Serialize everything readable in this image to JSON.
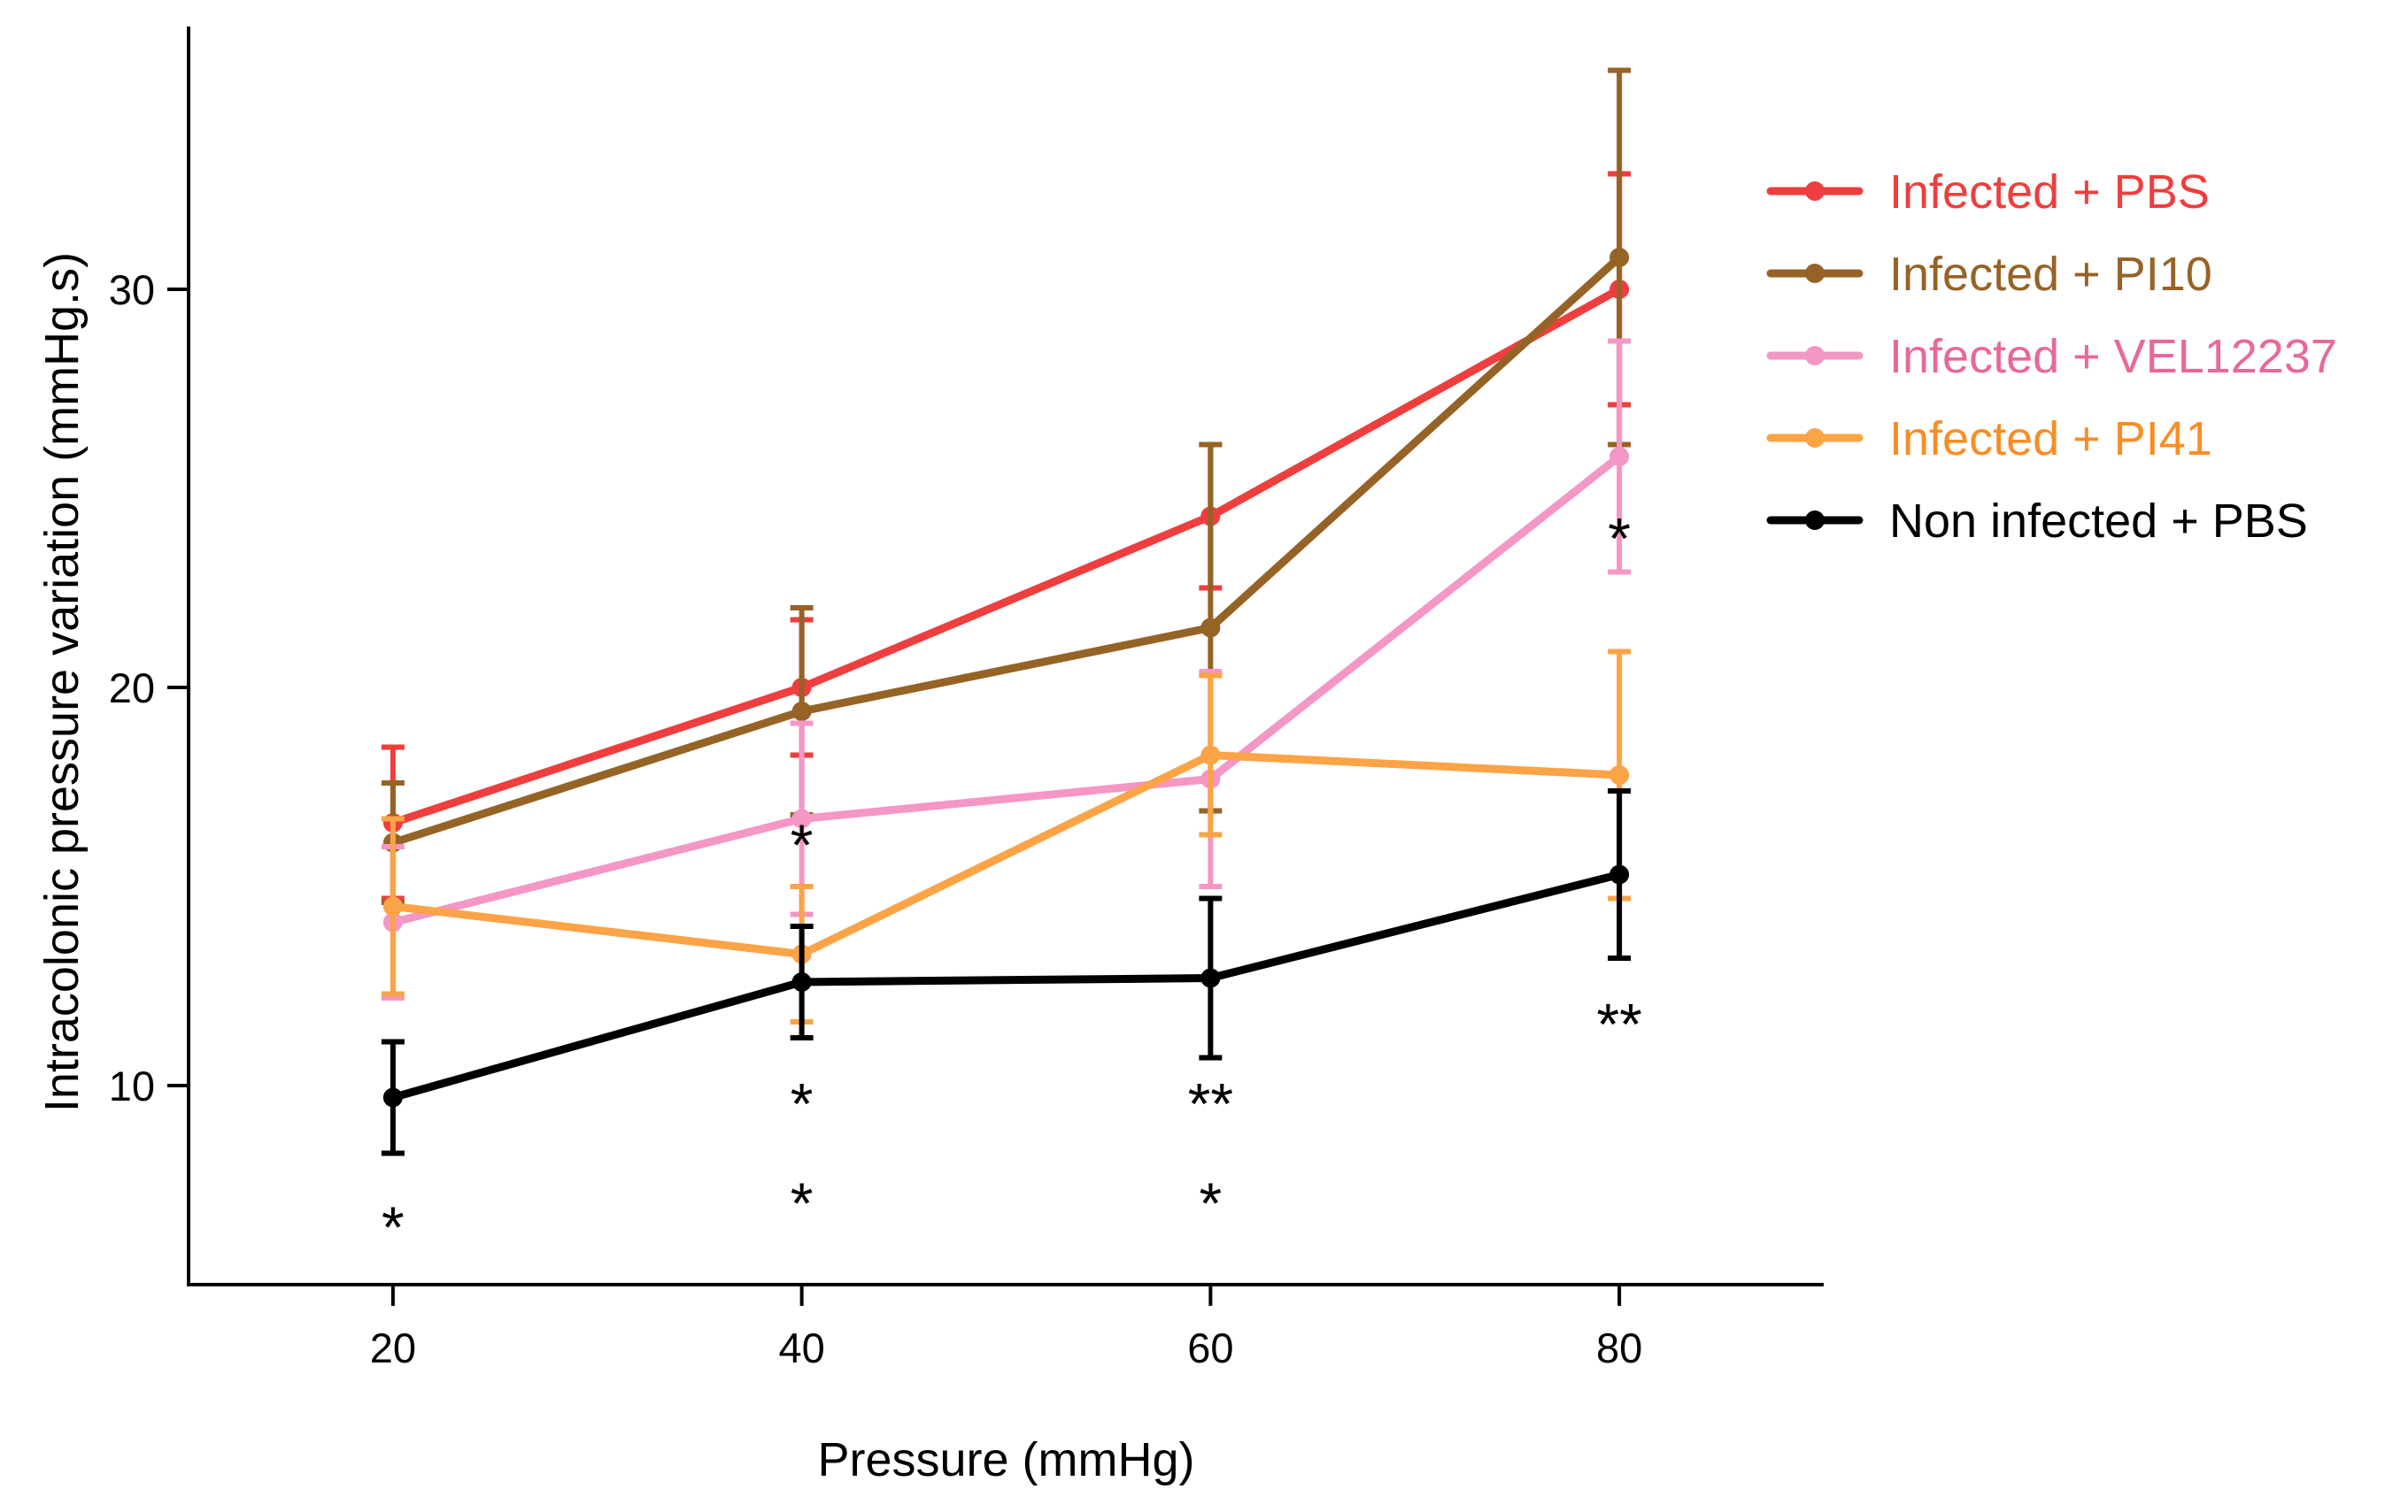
{
  "chart_data": {
    "type": "line",
    "title": "",
    "xlabel": "Pressure (mmHg)",
    "ylabel": "Intracolonic pressure variation (mmHg.s)",
    "x": [
      20,
      40,
      60,
      80
    ],
    "x_tick_labels": [
      "20",
      "40",
      "60",
      "80"
    ],
    "y_tick_labels": [
      "10",
      "20",
      "30"
    ],
    "y_ticks": [
      10,
      20,
      30
    ],
    "xlim": [
      10,
      90
    ],
    "ylim": [
      5,
      36.6
    ],
    "grid": false,
    "legend_position": "top-right",
    "series": [
      {
        "name": "Infected + PBS",
        "color": "#EE3E3E",
        "values": [
          16.6,
          20.0,
          24.3,
          30.0
        ],
        "errors": [
          1.9,
          1.7,
          1.8,
          2.9
        ]
      },
      {
        "name": "Infected + PI10",
        "color": "#966326",
        "values": [
          16.1,
          19.4,
          21.5,
          30.8
        ],
        "errors": [
          1.5,
          2.6,
          4.6,
          4.7
        ]
      },
      {
        "name": "Infected + VEL12237",
        "color": "#F496C6",
        "values": [
          14.1,
          16.7,
          17.7,
          25.8
        ],
        "errors": [
          1.9,
          2.4,
          2.7,
          2.9
        ]
      },
      {
        "name": "Infected + PI41",
        "color": "#FBA347",
        "values": [
          14.5,
          13.3,
          18.3,
          17.8
        ],
        "errors": [
          2.2,
          1.7,
          2.0,
          3.1
        ]
      },
      {
        "name": "Non infected + PBS",
        "color": "#000000",
        "values": [
          9.7,
          12.6,
          12.7,
          15.3
        ],
        "errors": [
          1.4,
          1.4,
          2.0,
          2.1
        ]
      }
    ],
    "legend_text_colors": [
      "#EE3E3E",
      "#966326",
      "#E8689C",
      "#F98D25",
      "#000000"
    ],
    "annotations": [
      {
        "text": "*",
        "x": 20,
        "y": 6.6
      },
      {
        "text": "*",
        "x": 40,
        "y": 16.2
      },
      {
        "text": "*",
        "x": 40,
        "y": 9.7
      },
      {
        "text": "*",
        "x": 40,
        "y": 7.2
      },
      {
        "text": "**",
        "x": 60,
        "y": 9.7
      },
      {
        "text": "*",
        "x": 60,
        "y": 7.2
      },
      {
        "text": "*",
        "x": 80,
        "y": 23.9
      },
      {
        "text": "**",
        "x": 80,
        "y": 11.7
      }
    ]
  }
}
